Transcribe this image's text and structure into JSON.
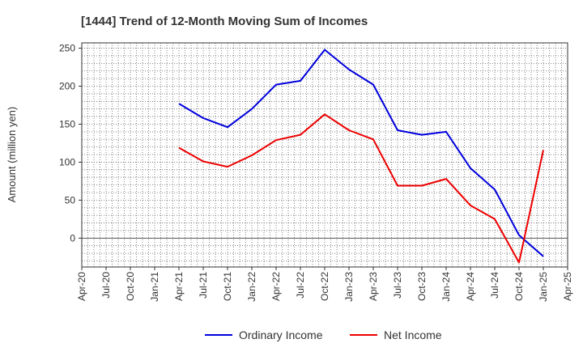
{
  "chart_data": {
    "type": "line",
    "title": "[1444]  Trend of 12-Month Moving Sum of Incomes",
    "xlabel": "",
    "ylabel": "Amount (million yen)",
    "ylim": [
      -38,
      257
    ],
    "yticks": [
      0,
      50,
      100,
      150,
      200,
      250
    ],
    "grid": true,
    "legend_position": "bottom-center",
    "x_tick_labels": [
      "Apr-20",
      "Jul-20",
      "Oct-20",
      "Jan-21",
      "Apr-21",
      "Jul-21",
      "Oct-21",
      "Jan-22",
      "Apr-22",
      "Jul-22",
      "Oct-22",
      "Jan-23",
      "Apr-23",
      "Jul-23",
      "Oct-23",
      "Jan-24",
      "Apr-24",
      "Jul-24",
      "Oct-24",
      "Jan-25",
      "Apr-25"
    ],
    "series": [
      {
        "name": "Ordinary Income",
        "color": "#0000dd",
        "x_labels": [
          "Apr-21",
          "Jul-21",
          "Oct-21",
          "Jan-22",
          "Apr-22",
          "Jul-22",
          "Oct-22",
          "Jan-23",
          "Apr-23",
          "Jul-23",
          "Oct-23",
          "Jan-24",
          "Apr-24",
          "Jul-24",
          "Oct-24",
          "Jan-25"
        ],
        "values": [
          177,
          158,
          146,
          170,
          202,
          207,
          248,
          222,
          202,
          142,
          136,
          140,
          92,
          64,
          4,
          -24
        ]
      },
      {
        "name": "Net Income",
        "color": "#ee0000",
        "x_labels": [
          "Apr-21",
          "Jul-21",
          "Oct-21",
          "Jan-22",
          "Apr-22",
          "Jul-22",
          "Oct-22",
          "Jan-23",
          "Apr-23",
          "Jul-23",
          "Oct-23",
          "Jan-24",
          "Apr-24",
          "Jul-24",
          "Oct-24",
          "Jan-25"
        ],
        "values": [
          119,
          101,
          94,
          109,
          129,
          136,
          163,
          142,
          130,
          69,
          69,
          78,
          43,
          25,
          -32,
          116
        ]
      }
    ]
  }
}
